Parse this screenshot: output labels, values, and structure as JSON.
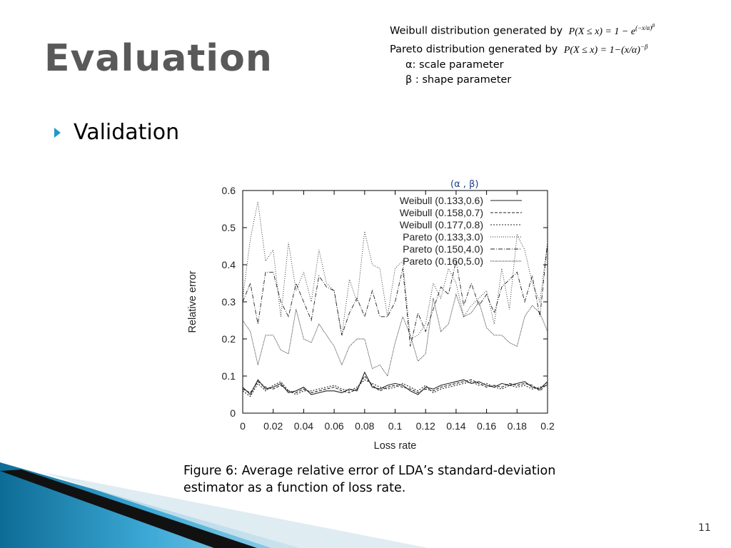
{
  "slide": {
    "title": "Evaluation",
    "bullet": "Validation",
    "caption_line1": "Figure 6: Average relative error of LDA’s standard-deviation",
    "caption_line2": "estimator as a function of loss rate.",
    "page_number": "11",
    "param_label": "(α , β)"
  },
  "notes": {
    "weibull_prefix": "Weibull distribution generated by",
    "weibull_formula": "P(X ≤ x) = 1 − e^(−x/α)^β",
    "pareto_prefix": "Pareto distribution generated by",
    "pareto_formula": "P(X ≤ x) = 1−(x/α)^−β",
    "alpha_line": "α: scale parameter",
    "beta_line": "β : shape parameter"
  },
  "colors": {
    "accent": "#1e9bc4",
    "title": "#595959",
    "series": "#222222"
  },
  "chart_data": {
    "type": "line",
    "xlabel": "Loss rate",
    "ylabel": "Relative error",
    "xlim": [
      0,
      0.2
    ],
    "ylim": [
      0,
      0.6
    ],
    "xticks": [
      "0",
      "0.02",
      "0.04",
      "0.06",
      "0.08",
      "0.1",
      "0.12",
      "0.14",
      "0.16",
      "0.18",
      "0.2"
    ],
    "yticks": [
      "0",
      "0.1",
      "0.2",
      "0.3",
      "0.4",
      "0.5",
      "0.6"
    ],
    "legend_position": "top-right",
    "x": [
      0,
      0.005,
      0.01,
      0.015,
      0.02,
      0.025,
      0.03,
      0.035,
      0.04,
      0.045,
      0.05,
      0.055,
      0.06,
      0.065,
      0.07,
      0.075,
      0.08,
      0.085,
      0.09,
      0.095,
      0.1,
      0.105,
      0.11,
      0.115,
      0.12,
      0.125,
      0.13,
      0.135,
      0.14,
      0.145,
      0.15,
      0.155,
      0.16,
      0.165,
      0.17,
      0.175,
      0.18,
      0.185,
      0.19,
      0.195,
      0.2
    ],
    "series": [
      {
        "name": "Weibull (0.133,0.6)",
        "dash": "",
        "values": [
          0.07,
          0.05,
          0.09,
          0.065,
          0.07,
          0.08,
          0.055,
          0.06,
          0.07,
          0.05,
          0.055,
          0.06,
          0.06,
          0.055,
          0.065,
          0.06,
          0.11,
          0.07,
          0.065,
          0.075,
          0.08,
          0.075,
          0.06,
          0.05,
          0.07,
          0.065,
          0.075,
          0.08,
          0.085,
          0.09,
          0.08,
          0.085,
          0.075,
          0.07,
          0.08,
          0.075,
          0.08,
          0.085,
          0.07,
          0.065,
          0.085
        ]
      },
      {
        "name": "Weibull (0.158,0.7)",
        "dash": "4,2",
        "values": [
          0.065,
          0.055,
          0.085,
          0.07,
          0.065,
          0.075,
          0.06,
          0.055,
          0.065,
          0.055,
          0.06,
          0.065,
          0.07,
          0.06,
          0.055,
          0.065,
          0.1,
          0.075,
          0.06,
          0.07,
          0.075,
          0.07,
          0.065,
          0.055,
          0.065,
          0.06,
          0.07,
          0.075,
          0.08,
          0.085,
          0.09,
          0.08,
          0.07,
          0.075,
          0.07,
          0.08,
          0.075,
          0.08,
          0.075,
          0.06,
          0.08
        ]
      },
      {
        "name": "Weibull (0.177,0.8)",
        "dash": "2,2",
        "values": [
          0.06,
          0.045,
          0.08,
          0.06,
          0.075,
          0.085,
          0.06,
          0.05,
          0.06,
          0.06,
          0.065,
          0.07,
          0.075,
          0.065,
          0.06,
          0.07,
          0.09,
          0.08,
          0.07,
          0.065,
          0.07,
          0.08,
          0.07,
          0.06,
          0.075,
          0.055,
          0.065,
          0.07,
          0.075,
          0.08,
          0.085,
          0.075,
          0.08,
          0.07,
          0.065,
          0.075,
          0.07,
          0.075,
          0.065,
          0.07,
          0.075
        ]
      },
      {
        "name": "Pareto (0.133,3.0)",
        "dash": "1,2",
        "values": [
          0.31,
          0.47,
          0.57,
          0.41,
          0.44,
          0.26,
          0.46,
          0.33,
          0.38,
          0.3,
          0.44,
          0.35,
          0.33,
          0.21,
          0.36,
          0.3,
          0.49,
          0.4,
          0.39,
          0.26,
          0.39,
          0.41,
          0.2,
          0.21,
          0.24,
          0.35,
          0.31,
          0.39,
          0.35,
          0.26,
          0.29,
          0.31,
          0.33,
          0.24,
          0.39,
          0.28,
          0.48,
          0.44,
          0.35,
          0.3,
          0.46
        ]
      },
      {
        "name": "Pareto (0.150,4.0)",
        "dash": "6,2,1,2",
        "values": [
          0.3,
          0.35,
          0.24,
          0.38,
          0.38,
          0.3,
          0.26,
          0.35,
          0.3,
          0.25,
          0.37,
          0.34,
          0.33,
          0.21,
          0.27,
          0.31,
          0.26,
          0.33,
          0.26,
          0.26,
          0.3,
          0.39,
          0.18,
          0.27,
          0.22,
          0.28,
          0.34,
          0.32,
          0.41,
          0.29,
          0.35,
          0.29,
          0.32,
          0.27,
          0.34,
          0.36,
          0.38,
          0.3,
          0.37,
          0.26,
          0.46
        ]
      },
      {
        "name": "Pareto (0.160,5.0)",
        "dash": "1,1",
        "values": [
          0.25,
          0.22,
          0.13,
          0.21,
          0.21,
          0.17,
          0.16,
          0.28,
          0.2,
          0.19,
          0.24,
          0.21,
          0.18,
          0.13,
          0.18,
          0.2,
          0.2,
          0.12,
          0.13,
          0.1,
          0.19,
          0.26,
          0.21,
          0.14,
          0.16,
          0.31,
          0.22,
          0.24,
          0.32,
          0.26,
          0.27,
          0.3,
          0.23,
          0.21,
          0.21,
          0.19,
          0.18,
          0.26,
          0.29,
          0.27,
          0.22
        ]
      }
    ]
  }
}
